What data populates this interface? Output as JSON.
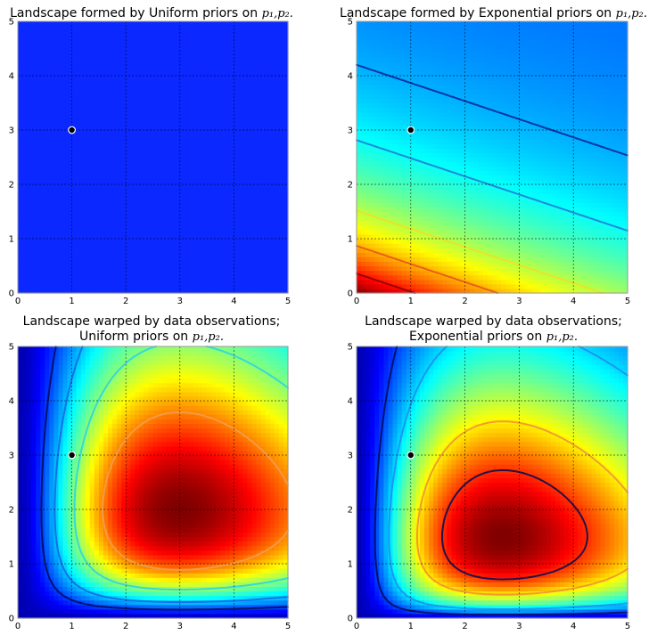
{
  "chart_data": [
    {
      "type": "heatmap",
      "title": "Landscape formed by Uniform priors on",
      "title_vars": "p₁,p₂.",
      "x_ticks": [
        "0",
        "1",
        "2",
        "3",
        "4",
        "5"
      ],
      "y_ticks": [
        "0",
        "1",
        "2",
        "3",
        "4",
        "5"
      ],
      "xlim": [
        0,
        5
      ],
      "ylim": [
        0,
        5
      ],
      "grid": true,
      "surface": "constant",
      "marker": {
        "x": 1,
        "y": 3
      },
      "contours": []
    },
    {
      "type": "heatmap",
      "title": "Landscape formed by Exponential priors on",
      "title_vars": "p₁,p₂.",
      "x_ticks": [
        "0",
        "1",
        "2",
        "3",
        "4",
        "5"
      ],
      "y_ticks": [
        "0",
        "1",
        "2",
        "3",
        "4",
        "5"
      ],
      "xlim": [
        0,
        5
      ],
      "ylim": [
        0,
        5
      ],
      "grid": true,
      "surface": "exponential",
      "density": "exp(-(x/3 + y))",
      "marker": {
        "x": 1,
        "y": 3
      },
      "contours": [
        {
          "level": 0.7,
          "color": "#8c0000"
        },
        {
          "level": 0.42,
          "color": "#e8501e"
        },
        {
          "level": 0.22,
          "color": "#f0e01e"
        },
        {
          "level": 0.06,
          "color": "#1e78d8"
        },
        {
          "level": 0.015,
          "color": "#0a1e96"
        }
      ]
    },
    {
      "type": "heatmap",
      "title": "Landscape warped by data observations;",
      "title_line2": "Uniform priors on",
      "title_vars": "p₁,p₂.",
      "x_ticks": [
        "0",
        "1",
        "2",
        "3",
        "4",
        "5"
      ],
      "y_ticks": [
        "0",
        "1",
        "2",
        "3",
        "4",
        "5"
      ],
      "xlim": [
        0,
        5
      ],
      "ylim": [
        0,
        5
      ],
      "grid": true,
      "surface": "posterior",
      "peak": {
        "x": 3.0,
        "y": 2.0
      },
      "marker": {
        "x": 1,
        "y": 3
      },
      "contours": [
        {
          "level": 0.04,
          "color": "#000a55"
        },
        {
          "level": 0.12,
          "color": "#1464e6"
        },
        {
          "level": 0.3,
          "color": "#28d2e6"
        },
        {
          "level": 0.6,
          "color": "#f0a050"
        }
      ]
    },
    {
      "type": "heatmap",
      "title": "Landscape warped by data observations;",
      "title_line2": "Exponential priors on",
      "title_vars": "p₁,p₂.",
      "x_ticks": [
        "0",
        "1",
        "2",
        "3",
        "4",
        "5"
      ],
      "y_ticks": [
        "0",
        "1",
        "2",
        "3",
        "4",
        "5"
      ],
      "xlim": [
        0,
        5
      ],
      "ylim": [
        0,
        5
      ],
      "grid": true,
      "surface": "posterior",
      "peak": {
        "x": 2.7,
        "y": 1.5
      },
      "marker": {
        "x": 1,
        "y": 3
      },
      "contours": [
        {
          "level": 0.04,
          "color": "#000a55"
        },
        {
          "level": 0.14,
          "color": "#1e8cf0"
        },
        {
          "level": 0.45,
          "color": "#f08c3c"
        },
        {
          "level": 0.72,
          "color": "#000a55"
        }
      ]
    }
  ]
}
